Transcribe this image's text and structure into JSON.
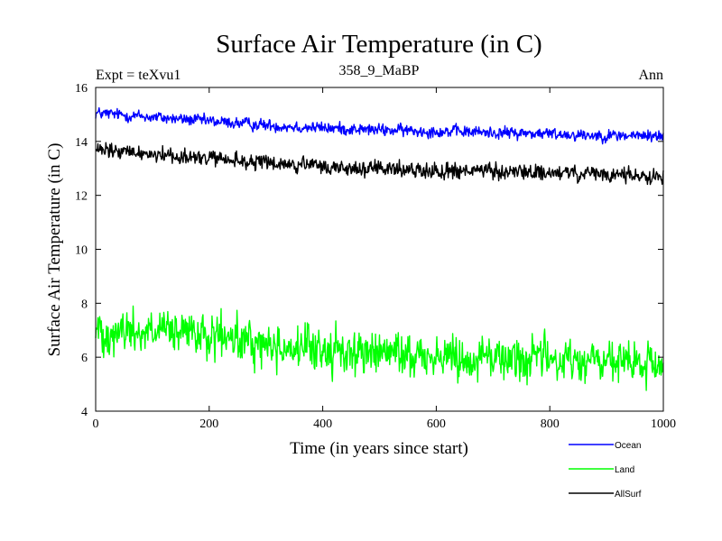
{
  "chart_data": {
    "type": "line",
    "title": "Surface Air Temperature (in C)",
    "subtitle_left": "Expt = teXvu1",
    "subtitle_center": "358_9_MaBP",
    "subtitle_right": "Ann",
    "xlabel": "Time (in years since start)",
    "ylabel": "Surface Air Temperature (in C)",
    "xlim": [
      0,
      1000
    ],
    "ylim": [
      4,
      16
    ],
    "xticks": [
      0,
      200,
      400,
      600,
      800,
      1000
    ],
    "yticks": [
      4,
      6,
      8,
      10,
      12,
      14,
      16
    ],
    "legend_position": "bottom-right, below plot",
    "series": [
      {
        "name": "Ocean",
        "color": "#0000ff",
        "noise": 0.15,
        "x": [
          0,
          100,
          200,
          300,
          400,
          500,
          600,
          700,
          800,
          900,
          1000
        ],
        "values": [
          15.05,
          14.9,
          14.75,
          14.6,
          14.5,
          14.42,
          14.38,
          14.33,
          14.28,
          14.22,
          14.2
        ]
      },
      {
        "name": "Land",
        "color": "#00ff00",
        "noise": 0.55,
        "x": [
          0,
          100,
          200,
          300,
          400,
          500,
          600,
          700,
          800,
          900,
          1000
        ],
        "values": [
          7.0,
          6.95,
          6.75,
          6.45,
          6.25,
          6.15,
          6.05,
          6.0,
          5.95,
          5.8,
          5.65
        ]
      },
      {
        "name": "AllSurf",
        "color": "#000000",
        "noise": 0.2,
        "x": [
          0,
          100,
          200,
          300,
          400,
          500,
          600,
          700,
          800,
          900,
          1000
        ],
        "values": [
          13.65,
          13.55,
          13.35,
          13.2,
          13.05,
          12.97,
          12.93,
          12.88,
          12.83,
          12.75,
          12.72
        ]
      }
    ]
  }
}
